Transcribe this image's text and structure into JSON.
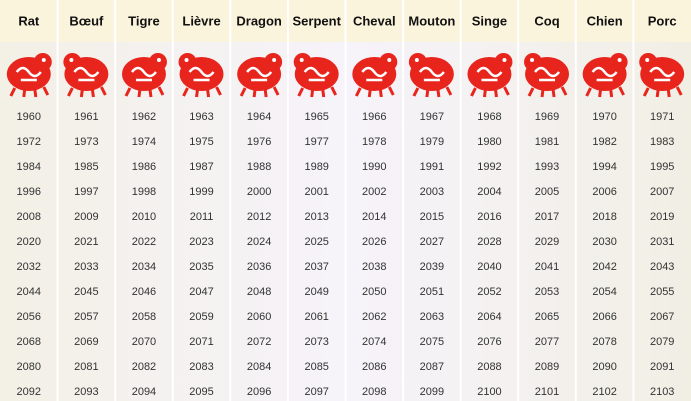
{
  "table": {
    "headers": [
      "Rat",
      "Bœuf",
      "Tigre",
      "Lièvre",
      "Dragon",
      "Serpent",
      "Cheval",
      "Mouton",
      "Singe",
      "Coq",
      "Chien",
      "Porc"
    ],
    "rows": [
      [
        1960,
        1961,
        1962,
        1963,
        1964,
        1965,
        1966,
        1967,
        1968,
        1969,
        1970,
        1971
      ],
      [
        1972,
        1973,
        1974,
        1975,
        1976,
        1977,
        1978,
        1979,
        1980,
        1981,
        1982,
        1983
      ],
      [
        1984,
        1985,
        1986,
        1987,
        1988,
        1989,
        1990,
        1991,
        1992,
        1993,
        1994,
        1995
      ],
      [
        1996,
        1997,
        1998,
        1999,
        2000,
        2001,
        2002,
        2003,
        2004,
        2005,
        2006,
        2007
      ],
      [
        2008,
        2009,
        2010,
        2011,
        2012,
        2013,
        2014,
        2015,
        2016,
        2017,
        2018,
        2019
      ],
      [
        2020,
        2021,
        2022,
        2023,
        2024,
        2025,
        2026,
        2027,
        2028,
        2029,
        2030,
        2031
      ],
      [
        2032,
        2033,
        2034,
        2035,
        2036,
        2037,
        2038,
        2039,
        2040,
        2041,
        2042,
        2043
      ],
      [
        2044,
        2045,
        2046,
        2047,
        2048,
        2049,
        2050,
        2051,
        2052,
        2053,
        2054,
        2055
      ],
      [
        2056,
        2057,
        2058,
        2059,
        2060,
        2061,
        2062,
        2063,
        2064,
        2065,
        2066,
        2067
      ],
      [
        2068,
        2069,
        2070,
        2071,
        2072,
        2073,
        2074,
        2075,
        2076,
        2077,
        2078,
        2079
      ],
      [
        2080,
        2081,
        2082,
        2083,
        2084,
        2085,
        2086,
        2087,
        2088,
        2089,
        2090,
        2091
      ],
      [
        2092,
        2093,
        2094,
        2095,
        2096,
        2097,
        2098,
        2099,
        2100,
        2101,
        2102,
        2103
      ]
    ]
  }
}
